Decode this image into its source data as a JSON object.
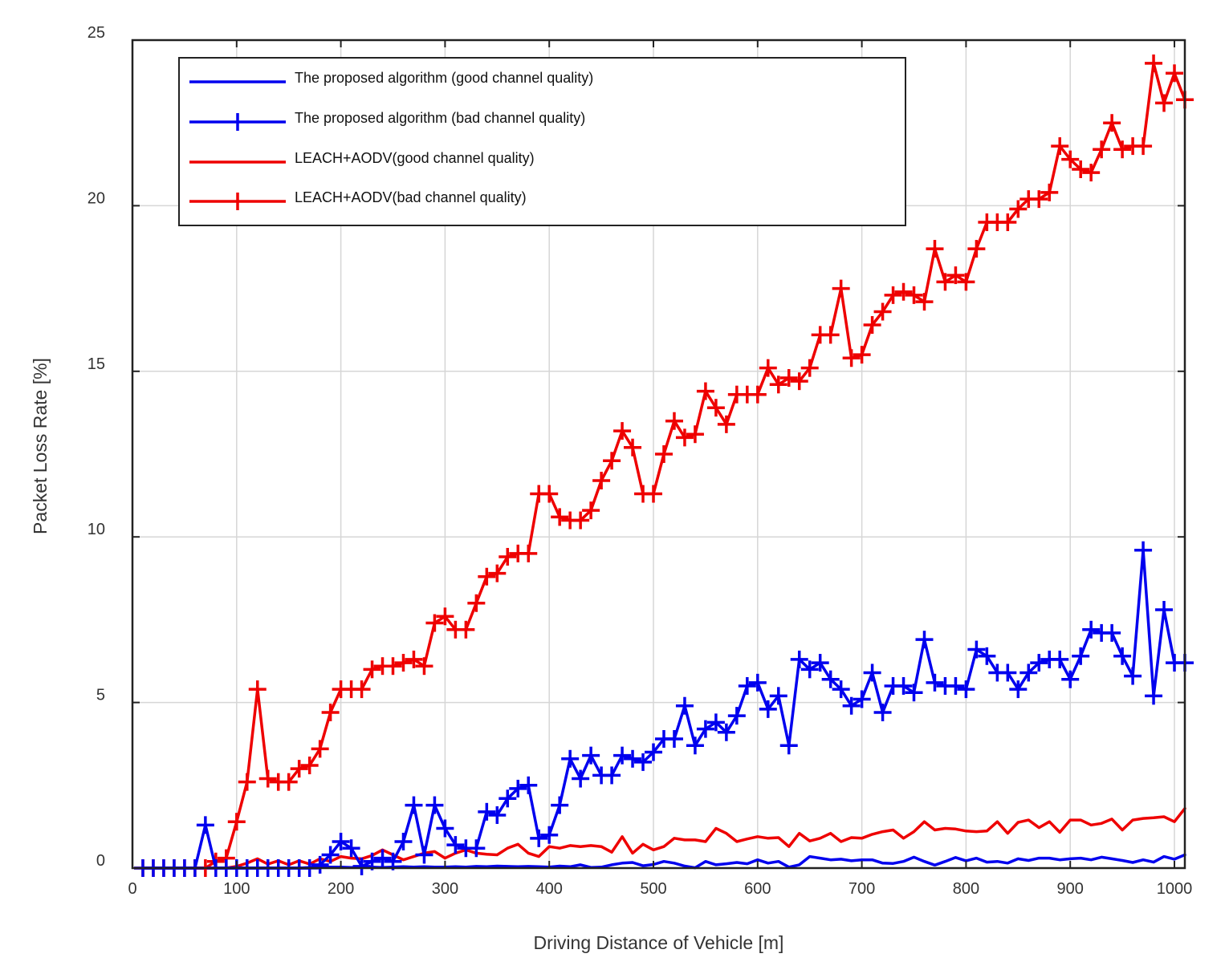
{
  "chart_data": {
    "type": "line",
    "title": "",
    "xlabel": "Driving Distance of Vehicle [m]",
    "ylabel": "Packet Loss Rate [%]",
    "xlim": [
      0,
      1010
    ],
    "ylim": [
      0,
      25
    ],
    "xticks": [
      0,
      100,
      200,
      300,
      400,
      500,
      600,
      700,
      800,
      900,
      1000
    ],
    "yticks": [
      0,
      5,
      10,
      15,
      20,
      25
    ],
    "grid": true,
    "legend_position": "top-left",
    "x": [
      10,
      20,
      30,
      40,
      50,
      60,
      70,
      80,
      90,
      100,
      110,
      120,
      130,
      140,
      150,
      160,
      170,
      180,
      190,
      200,
      210,
      220,
      230,
      240,
      250,
      260,
      270,
      280,
      290,
      300,
      310,
      320,
      330,
      340,
      350,
      360,
      370,
      380,
      390,
      400,
      410,
      420,
      430,
      440,
      450,
      460,
      470,
      480,
      490,
      500,
      510,
      520,
      530,
      540,
      550,
      560,
      570,
      580,
      590,
      600,
      610,
      620,
      630,
      640,
      650,
      660,
      670,
      680,
      690,
      700,
      710,
      720,
      730,
      740,
      750,
      760,
      770,
      780,
      790,
      800,
      810,
      820,
      830,
      840,
      850,
      860,
      870,
      880,
      890,
      900,
      910,
      920,
      930,
      940,
      950,
      960,
      970,
      980,
      990,
      1000,
      1010
    ],
    "series": [
      {
        "name": "The proposed algorithm (good channel quality)",
        "color": "#0000ee",
        "marker": "none",
        "values": [
          0,
          0,
          0,
          0,
          0,
          0,
          0,
          0,
          0,
          0,
          0,
          0,
          0,
          0,
          0,
          0,
          0.02,
          0.02,
          0.03,
          0.03,
          0.02,
          0.03,
          0.03,
          0.02,
          0.03,
          0.04,
          0.03,
          0.04,
          0.03,
          0.03,
          0.04,
          0.03,
          0.05,
          0.04,
          0.06,
          0.05,
          0.04,
          0.05,
          0.04,
          0.03,
          0.06,
          0.04,
          0.1,
          0.02,
          0.03,
          0.1,
          0.15,
          0.17,
          0.07,
          0.11,
          0.2,
          0.15,
          0.06,
          0.01,
          0.2,
          0.1,
          0.13,
          0.17,
          0.13,
          0.25,
          0.15,
          0.2,
          0.03,
          0.1,
          0.35,
          0.3,
          0.25,
          0.27,
          0.22,
          0.25,
          0.25,
          0.15,
          0.14,
          0.2,
          0.33,
          0.2,
          0.09,
          0.2,
          0.32,
          0.22,
          0.3,
          0.18,
          0.2,
          0.15,
          0.28,
          0.23,
          0.3,
          0.3,
          0.25,
          0.28,
          0.3,
          0.25,
          0.33,
          0.28,
          0.23,
          0.17,
          0.25,
          0.18,
          0.35,
          0.27,
          0.4
        ]
      },
      {
        "name": "The proposed algorithm (bad channel quality)",
        "color": "#0000ee",
        "marker": "plus",
        "values": [
          0,
          0,
          0,
          0,
          0,
          0,
          1.3,
          0,
          0,
          0,
          0,
          0,
          0,
          0,
          0,
          0,
          0,
          0.1,
          0.4,
          0.8,
          0.6,
          0.05,
          0.2,
          0.3,
          0.2,
          0.8,
          1.9,
          0.4,
          1.9,
          1.2,
          0.7,
          0.6,
          0.6,
          1.7,
          1.6,
          2.1,
          2.4,
          2.5,
          0.9,
          1.0,
          1.9,
          3.3,
          2.7,
          3.4,
          2.8,
          2.8,
          3.4,
          3.3,
          3.2,
          3.5,
          3.9,
          3.9,
          4.9,
          3.7,
          4.2,
          4.4,
          4.1,
          4.6,
          5.5,
          5.6,
          4.8,
          5.2,
          3.7,
          6.3,
          6.0,
          6.2,
          5.7,
          5.4,
          4.9,
          5.1,
          5.9,
          4.7,
          5.5,
          5.5,
          5.3,
          6.9,
          5.6,
          5.5,
          5.5,
          5.4,
          6.6,
          6.4,
          5.9,
          5.9,
          5.4,
          5.9,
          6.2,
          6.3,
          6.3,
          5.7,
          6.4,
          7.2,
          7.1,
          7.1,
          6.4,
          5.8,
          9.6,
          5.2,
          7.8,
          6.2,
          6.2
        ]
      },
      {
        "name": "LEACH+AODV(good channel quality)",
        "color": "#ee0000",
        "marker": "none",
        "values": [
          0,
          0,
          0,
          0,
          0,
          0,
          0,
          0,
          0,
          0.05,
          0.15,
          0.28,
          0.12,
          0.22,
          0.1,
          0.22,
          0.12,
          0.28,
          0.2,
          0.35,
          0.3,
          0.28,
          0.38,
          0.55,
          0.4,
          0.25,
          0.35,
          0.45,
          0.5,
          0.3,
          0.45,
          0.55,
          0.45,
          0.42,
          0.4,
          0.6,
          0.72,
          0.45,
          0.35,
          0.65,
          0.6,
          0.68,
          0.65,
          0.68,
          0.65,
          0.48,
          0.95,
          0.45,
          0.72,
          0.55,
          0.65,
          0.9,
          0.85,
          0.85,
          0.8,
          1.2,
          1.05,
          0.8,
          0.88,
          0.95,
          0.9,
          0.92,
          0.65,
          1.05,
          0.82,
          0.9,
          1.05,
          0.8,
          0.92,
          0.9,
          1.02,
          1.1,
          1.15,
          0.9,
          1.1,
          1.4,
          1.15,
          1.2,
          1.18,
          1.12,
          1.1,
          1.12,
          1.4,
          1.05,
          1.38,
          1.45,
          1.22,
          1.4,
          1.08,
          1.45,
          1.45,
          1.3,
          1.35,
          1.48,
          1.15,
          1.45,
          1.5,
          1.52,
          1.55,
          1.4,
          1.8
        ]
      },
      {
        "name": "LEACH+AODV(bad channel quality)",
        "color": "#ee0000",
        "marker": "plus",
        "values": [
          0,
          0,
          0,
          0,
          0,
          0,
          0,
          0.2,
          0.3,
          1.4,
          2.6,
          5.4,
          2.7,
          2.6,
          2.6,
          3.0,
          3.1,
          3.6,
          4.7,
          5.4,
          5.4,
          5.4,
          6.0,
          6.1,
          6.1,
          6.2,
          6.3,
          6.1,
          7.4,
          7.6,
          7.2,
          7.2,
          8.0,
          8.8,
          8.9,
          9.4,
          9.5,
          9.5,
          11.3,
          11.3,
          10.6,
          10.5,
          10.5,
          10.8,
          11.7,
          12.3,
          13.2,
          12.7,
          11.3,
          11.3,
          12.5,
          13.5,
          13.0,
          13.1,
          14.4,
          13.9,
          13.4,
          14.3,
          14.3,
          14.3,
          15.1,
          14.6,
          14.8,
          14.7,
          15.1,
          16.1,
          16.1,
          17.5,
          15.4,
          15.5,
          16.4,
          16.8,
          17.3,
          17.4,
          17.3,
          17.1,
          18.7,
          17.7,
          17.9,
          17.7,
          18.7,
          19.5,
          19.5,
          19.5,
          19.9,
          20.2,
          20.2,
          20.4,
          21.8,
          21.4,
          21.1,
          21.0,
          21.7,
          22.5,
          21.7,
          21.8,
          21.8,
          24.3,
          23.1,
          24.0,
          23.2
        ]
      }
    ]
  }
}
